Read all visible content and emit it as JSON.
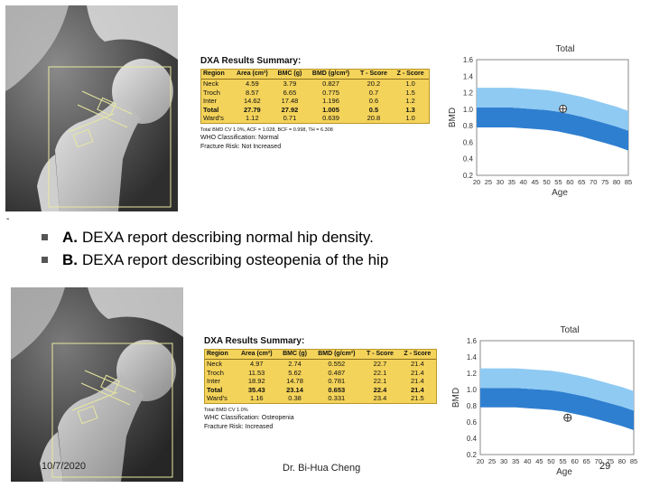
{
  "bullets": [
    {
      "label": "A.",
      "text": "DEXA report describing normal hip density."
    },
    {
      "label": "B.",
      "text": "DEXA report describing osteopenia of the hip"
    }
  ],
  "footer": {
    "date": "10/7/2020",
    "author": "Dr. Bi-Hua Cheng",
    "page": "29"
  },
  "dash": "-",
  "report_a": {
    "title": "DXA Results Summary:",
    "columns": [
      "Region",
      "Area (cm²)",
      "BMC (g)",
      "BMD (g/cm²)",
      "T - Score",
      "Z - Score"
    ],
    "rows": [
      [
        "Neck",
        "4.59",
        "3.79",
        "0.827",
        "20.2",
        "1.0"
      ],
      [
        "Troch",
        "8.57",
        "6.65",
        "0.775",
        "0.7",
        "1.5"
      ],
      [
        "Inter",
        "14.62",
        "17.48",
        "1.196",
        "0.6",
        "1.2"
      ],
      [
        "Total",
        "27.79",
        "27.92",
        "1.005",
        "0.5",
        "1.3"
      ],
      [
        "Ward's",
        "1.12",
        "0.71",
        "0.639",
        "20.8",
        "1.0"
      ]
    ],
    "cv_line": "Total BMD CV 1.0%, ACF = 1.028, BCF = 0.998, TH = 6.308",
    "who": "WHO Classification: Normal",
    "fracture": "Fracture Risk: Not Increased"
  },
  "report_b": {
    "title": "DXA Results Summary:",
    "columns": [
      "Region",
      "Area (cm²)",
      "BMC (g)",
      "BMD (g/cm²)",
      "T - Score",
      "Z - Score"
    ],
    "rows": [
      [
        "Neck",
        "4.97",
        "2.74",
        "0.552",
        "22.7",
        "21.4"
      ],
      [
        "Troch",
        "11.53",
        "5.62",
        "0.487",
        "22.1",
        "21.4"
      ],
      [
        "Inter",
        "18.92",
        "14.78",
        "0.781",
        "22.1",
        "21.4"
      ],
      [
        "Total",
        "35.43",
        "23.14",
        "0.653",
        "22.4",
        "21.4"
      ],
      [
        "Ward's",
        "1.16",
        "0.38",
        "0.331",
        "23.4",
        "21.5"
      ]
    ],
    "cv_line": "Total BMD CV 1.0%",
    "who": "WHC Classification: Osteopenia",
    "fracture": "Fracture Risk: Increased"
  },
  "chart_data": [
    {
      "type": "area",
      "title": "Total",
      "xlabel": "Age",
      "ylabel": "BMD",
      "x": [
        20,
        25,
        30,
        35,
        40,
        45,
        50,
        55,
        60,
        65,
        70,
        75,
        80,
        85
      ],
      "ylim": [
        0.2,
        1.6
      ],
      "yticks": [
        0.2,
        0.4,
        0.6,
        0.8,
        1.0,
        1.2,
        1.4,
        1.6
      ],
      "bands": [
        {
          "lower": [
            0.78,
            0.78,
            0.78,
            0.78,
            0.77,
            0.76,
            0.75,
            0.73,
            0.7,
            0.67,
            0.63,
            0.59,
            0.55,
            0.5
          ],
          "upper": [
            1.02,
            1.02,
            1.02,
            1.02,
            1.01,
            1.0,
            0.99,
            0.97,
            0.94,
            0.91,
            0.87,
            0.83,
            0.79,
            0.74
          ],
          "color": "#2f7fd0"
        },
        {
          "lower": [
            1.02,
            1.02,
            1.02,
            1.02,
            1.01,
            1.0,
            0.99,
            0.97,
            0.94,
            0.91,
            0.87,
            0.83,
            0.79,
            0.74
          ],
          "upper": [
            1.26,
            1.26,
            1.26,
            1.26,
            1.25,
            1.24,
            1.23,
            1.21,
            1.18,
            1.15,
            1.11,
            1.07,
            1.03,
            0.98
          ],
          "color": "#8fcaf3"
        }
      ],
      "patient": {
        "age": 57,
        "bmd": 1.005
      }
    },
    {
      "type": "area",
      "title": "Total",
      "xlabel": "Age",
      "ylabel": "BMD",
      "x": [
        20,
        25,
        30,
        35,
        40,
        45,
        50,
        55,
        60,
        65,
        70,
        75,
        80,
        85
      ],
      "ylim": [
        0.2,
        1.6
      ],
      "yticks": [
        0.2,
        0.4,
        0.6,
        0.8,
        1.0,
        1.2,
        1.4,
        1.6
      ],
      "bands": [
        {
          "lower": [
            0.78,
            0.78,
            0.78,
            0.78,
            0.77,
            0.76,
            0.75,
            0.73,
            0.7,
            0.67,
            0.63,
            0.59,
            0.55,
            0.5
          ],
          "upper": [
            1.02,
            1.02,
            1.02,
            1.02,
            1.01,
            1.0,
            0.99,
            0.97,
            0.94,
            0.91,
            0.87,
            0.83,
            0.79,
            0.74
          ],
          "color": "#2f7fd0"
        },
        {
          "lower": [
            1.02,
            1.02,
            1.02,
            1.02,
            1.01,
            1.0,
            0.99,
            0.97,
            0.94,
            0.91,
            0.87,
            0.83,
            0.79,
            0.74
          ],
          "upper": [
            1.26,
            1.26,
            1.26,
            1.26,
            1.25,
            1.24,
            1.23,
            1.21,
            1.18,
            1.15,
            1.11,
            1.07,
            1.03,
            0.98
          ],
          "color": "#8fcaf3"
        }
      ],
      "patient": {
        "age": 57,
        "bmd": 0.653
      }
    }
  ]
}
